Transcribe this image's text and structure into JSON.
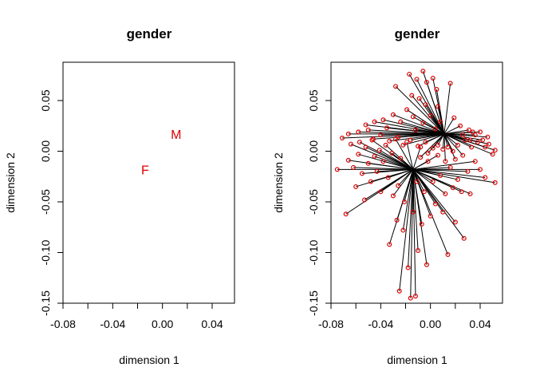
{
  "chart_data": [
    {
      "type": "scatter",
      "title": "gender",
      "xlabel": "dimension 1",
      "ylabel": "dimension 2",
      "xlim": [
        -0.08,
        0.055
      ],
      "ylim": [
        -0.15,
        0.085
      ],
      "xticks": [
        "-0.08",
        "-0.04",
        "0.00",
        "0.04"
      ],
      "yticks": [
        "-0.15",
        "-0.10",
        "-0.05",
        "0.00",
        "0.05"
      ],
      "category_color": "#dd0000",
      "categories": [
        {
          "label": "F",
          "x": -0.014,
          "y": -0.018
        },
        {
          "label": "M",
          "x": 0.011,
          "y": 0.017
        }
      ]
    },
    {
      "type": "scatter",
      "title": "gender",
      "xlabel": "dimension 1",
      "ylabel": "dimension 2",
      "xlim": [
        -0.08,
        0.055
      ],
      "ylim": [
        -0.15,
        0.085
      ],
      "xticks": [
        "-0.08",
        "-0.04",
        "0.00",
        "0.04"
      ],
      "yticks": [
        "-0.15",
        "-0.10",
        "-0.05",
        "0.00",
        "0.05"
      ],
      "point_color": "#dd0000",
      "line_color": "#000000",
      "centers": {
        "F": {
          "x": -0.014,
          "y": -0.018
        },
        "M": {
          "x": 0.011,
          "y": 0.017
        }
      },
      "points": [
        {
          "x": -0.075,
          "y": -0.018,
          "g": "F"
        },
        {
          "x": -0.068,
          "y": -0.062,
          "g": "F"
        },
        {
          "x": -0.066,
          "y": -0.009,
          "g": "F"
        },
        {
          "x": -0.064,
          "y": 0.007,
          "g": "F"
        },
        {
          "x": -0.062,
          "y": -0.016,
          "g": "F"
        },
        {
          "x": -0.06,
          "y": -0.035,
          "g": "F"
        },
        {
          "x": -0.058,
          "y": -0.003,
          "g": "F"
        },
        {
          "x": -0.057,
          "y": 0.009,
          "g": "F"
        },
        {
          "x": -0.055,
          "y": -0.022,
          "g": "F"
        },
        {
          "x": -0.053,
          "y": -0.048,
          "g": "F"
        },
        {
          "x": -0.052,
          "y": 0.004,
          "g": "F"
        },
        {
          "x": -0.05,
          "y": -0.012,
          "g": "F"
        },
        {
          "x": -0.048,
          "y": -0.03,
          "g": "F"
        },
        {
          "x": -0.047,
          "y": 0.011,
          "g": "F"
        },
        {
          "x": -0.045,
          "y": -0.005,
          "g": "F"
        },
        {
          "x": -0.043,
          "y": -0.02,
          "g": "F"
        },
        {
          "x": -0.041,
          "y": 0.001,
          "g": "F"
        },
        {
          "x": -0.04,
          "y": -0.04,
          "g": "F"
        },
        {
          "x": -0.038,
          "y": -0.01,
          "g": "F"
        },
        {
          "x": -0.036,
          "y": 0.006,
          "g": "F"
        },
        {
          "x": -0.034,
          "y": -0.026,
          "g": "F"
        },
        {
          "x": -0.033,
          "y": -0.092,
          "g": "F"
        },
        {
          "x": -0.031,
          "y": -0.002,
          "g": "F"
        },
        {
          "x": -0.03,
          "y": -0.044,
          "g": "F"
        },
        {
          "x": -0.028,
          "y": 0.012,
          "g": "F"
        },
        {
          "x": -0.027,
          "y": -0.068,
          "g": "F"
        },
        {
          "x": -0.026,
          "y": -0.034,
          "g": "F"
        },
        {
          "x": -0.025,
          "y": -0.138,
          "g": "F"
        },
        {
          "x": -0.024,
          "y": -0.007,
          "g": "F"
        },
        {
          "x": -0.022,
          "y": -0.078,
          "g": "F"
        },
        {
          "x": -0.021,
          "y": -0.05,
          "g": "F"
        },
        {
          "x": -0.019,
          "y": 0.009,
          "g": "F"
        },
        {
          "x": -0.018,
          "y": -0.115,
          "g": "F"
        },
        {
          "x": -0.016,
          "y": -0.145,
          "g": "F"
        },
        {
          "x": -0.014,
          "y": -0.06,
          "g": "F"
        },
        {
          "x": -0.012,
          "y": -0.143,
          "g": "F"
        },
        {
          "x": -0.011,
          "y": -0.03,
          "g": "F"
        },
        {
          "x": -0.01,
          "y": -0.098,
          "g": "F"
        },
        {
          "x": -0.008,
          "y": 0.004,
          "g": "F"
        },
        {
          "x": -0.007,
          "y": -0.072,
          "g": "F"
        },
        {
          "x": -0.005,
          "y": -0.04,
          "g": "F"
        },
        {
          "x": -0.003,
          "y": -0.112,
          "g": "F"
        },
        {
          "x": -0.002,
          "y": -0.01,
          "g": "F"
        },
        {
          "x": 0.0,
          "y": -0.064,
          "g": "F"
        },
        {
          "x": 0.002,
          "y": -0.03,
          "g": "F"
        },
        {
          "x": 0.004,
          "y": -0.052,
          "g": "F"
        },
        {
          "x": 0.006,
          "y": -0.004,
          "g": "F"
        },
        {
          "x": 0.008,
          "y": -0.024,
          "g": "F"
        },
        {
          "x": 0.01,
          "y": -0.06,
          "g": "F"
        },
        {
          "x": 0.012,
          "y": -0.042,
          "g": "F"
        },
        {
          "x": 0.014,
          "y": -0.102,
          "g": "F"
        },
        {
          "x": 0.016,
          "y": -0.016,
          "g": "F"
        },
        {
          "x": 0.018,
          "y": -0.036,
          "g": "F"
        },
        {
          "x": 0.02,
          "y": -0.07,
          "g": "F"
        },
        {
          "x": 0.022,
          "y": -0.028,
          "g": "F"
        },
        {
          "x": 0.025,
          "y": -0.04,
          "g": "F"
        },
        {
          "x": 0.027,
          "y": -0.086,
          "g": "F"
        },
        {
          "x": 0.03,
          "y": -0.02,
          "g": "F"
        },
        {
          "x": 0.032,
          "y": -0.042,
          "g": "F"
        },
        {
          "x": 0.036,
          "y": -0.01,
          "g": "F"
        },
        {
          "x": 0.04,
          "y": -0.018,
          "g": "F"
        },
        {
          "x": 0.044,
          "y": -0.026,
          "g": "F"
        },
        {
          "x": 0.052,
          "y": -0.031,
          "g": "F"
        },
        {
          "x": -0.028,
          "y": 0.064,
          "g": "M"
        },
        {
          "x": -0.017,
          "y": 0.076,
          "g": "M"
        },
        {
          "x": -0.011,
          "y": 0.071,
          "g": "M"
        },
        {
          "x": -0.006,
          "y": 0.079,
          "g": "M"
        },
        {
          "x": -0.003,
          "y": 0.068,
          "g": "M"
        },
        {
          "x": 0.002,
          "y": 0.072,
          "g": "M"
        },
        {
          "x": 0.005,
          "y": 0.061,
          "g": "M"
        },
        {
          "x": 0.016,
          "y": 0.067,
          "g": "M"
        },
        {
          "x": -0.009,
          "y": 0.052,
          "g": "M"
        },
        {
          "x": -0.004,
          "y": 0.046,
          "g": "M"
        },
        {
          "x": -0.019,
          "y": 0.041,
          "g": "M"
        },
        {
          "x": -0.03,
          "y": 0.036,
          "g": "M"
        },
        {
          "x": -0.038,
          "y": 0.031,
          "g": "M"
        },
        {
          "x": -0.045,
          "y": 0.029,
          "g": "M"
        },
        {
          "x": -0.052,
          "y": 0.026,
          "g": "M"
        },
        {
          "x": -0.058,
          "y": 0.019,
          "g": "M"
        },
        {
          "x": -0.066,
          "y": 0.017,
          "g": "M"
        },
        {
          "x": -0.071,
          "y": 0.013,
          "g": "M"
        },
        {
          "x": -0.024,
          "y": 0.029,
          "g": "M"
        },
        {
          "x": -0.014,
          "y": 0.034,
          "g": "M"
        },
        {
          "x": -0.006,
          "y": 0.028,
          "g": "M"
        },
        {
          "x": 0.0,
          "y": 0.035,
          "g": "M"
        },
        {
          "x": 0.004,
          "y": 0.022,
          "g": "M"
        },
        {
          "x": 0.008,
          "y": 0.029,
          "g": "M"
        },
        {
          "x": 0.019,
          "y": 0.033,
          "g": "M"
        },
        {
          "x": 0.024,
          "y": 0.025,
          "g": "M"
        },
        {
          "x": 0.031,
          "y": 0.021,
          "g": "M"
        },
        {
          "x": 0.036,
          "y": 0.016,
          "g": "M"
        },
        {
          "x": 0.042,
          "y": 0.011,
          "g": "M"
        },
        {
          "x": 0.047,
          "y": 0.007,
          "g": "M"
        },
        {
          "x": 0.052,
          "y": 0.001,
          "g": "M"
        },
        {
          "x": 0.05,
          "y": -0.003,
          "g": "M"
        },
        {
          "x": 0.044,
          "y": 0.004,
          "g": "M"
        },
        {
          "x": 0.038,
          "y": 0.009,
          "g": "M"
        },
        {
          "x": 0.033,
          "y": 0.004,
          "g": "M"
        },
        {
          "x": 0.028,
          "y": 0.011,
          "g": "M"
        },
        {
          "x": 0.022,
          "y": 0.006,
          "g": "M"
        },
        {
          "x": 0.018,
          "y": 0.0,
          "g": "M"
        },
        {
          "x": 0.014,
          "y": 0.004,
          "g": "M"
        },
        {
          "x": 0.01,
          "y": 0.002,
          "g": "M"
        },
        {
          "x": 0.006,
          "y": 0.006,
          "g": "M"
        },
        {
          "x": 0.002,
          "y": 0.003,
          "g": "M"
        },
        {
          "x": -0.004,
          "y": 0.009,
          "g": "M"
        },
        {
          "x": -0.01,
          "y": 0.005,
          "g": "M"
        },
        {
          "x": -0.016,
          "y": 0.011,
          "g": "M"
        },
        {
          "x": -0.022,
          "y": 0.006,
          "g": "M"
        },
        {
          "x": -0.026,
          "y": 0.014,
          "g": "M"
        },
        {
          "x": -0.033,
          "y": 0.01,
          "g": "M"
        },
        {
          "x": -0.04,
          "y": 0.016,
          "g": "M"
        },
        {
          "x": -0.046,
          "y": 0.012,
          "g": "M"
        },
        {
          "x": -0.05,
          "y": 0.021,
          "g": "M"
        },
        {
          "x": -0.035,
          "y": 0.023,
          "g": "M"
        },
        {
          "x": -0.012,
          "y": 0.021,
          "g": "M"
        },
        {
          "x": 0.026,
          "y": 0.016,
          "g": "M"
        },
        {
          "x": 0.032,
          "y": 0.011,
          "g": "M"
        },
        {
          "x": 0.04,
          "y": 0.019,
          "g": "M"
        },
        {
          "x": 0.046,
          "y": 0.014,
          "g": "M"
        },
        {
          "x": 0.02,
          "y": -0.008,
          "g": "M"
        },
        {
          "x": 0.026,
          "y": -0.004,
          "g": "M"
        },
        {
          "x": 0.012,
          "y": -0.01,
          "g": "M"
        },
        {
          "x": -0.002,
          "y": -0.002,
          "g": "M"
        },
        {
          "x": -0.008,
          "y": -0.006,
          "g": "M"
        },
        {
          "x": 0.006,
          "y": 0.044,
          "g": "M"
        },
        {
          "x": -0.015,
          "y": 0.055,
          "g": "M"
        },
        {
          "x": 0.034,
          "y": 0.019,
          "g": "M"
        }
      ]
    }
  ]
}
